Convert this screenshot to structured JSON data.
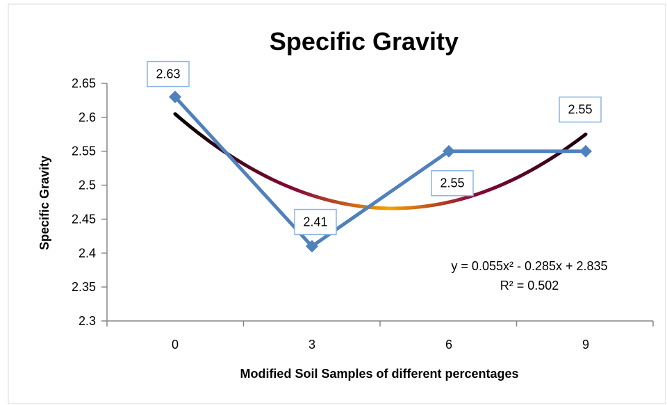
{
  "chart_data": {
    "type": "line",
    "title": "Specific Gravity",
    "xlabel": "Modified  Soil Samples of different percentages",
    "ylabel": "Specific Gravity",
    "x_ticks": [
      "0",
      "3",
      "6",
      "9"
    ],
    "y_ticks": [
      "2.3",
      "2.35",
      "2.4",
      "2.45",
      "2.5",
      "2.55",
      "2.6",
      "2.65"
    ],
    "ylim": [
      2.3,
      2.65
    ],
    "grid": false,
    "legend": "none",
    "series": [
      {
        "x": [
          0,
          3,
          6,
          9
        ],
        "values": [
          2.63,
          2.41,
          2.55,
          2.55
        ],
        "color": "#4F81BD",
        "marker": "diamond"
      }
    ],
    "data_labels": [
      "2.63",
      "2.41",
      "2.55",
      "2.55"
    ],
    "trendline": {
      "type": "polynomial",
      "order": 2,
      "equation": "y = 0.055x² - 0.285x + 2.835",
      "r_squared": "R² = 0.502",
      "coefficients": [
        0.055,
        -0.285,
        2.835
      ],
      "colors": [
        "#000000",
        "#8B0A3A",
        "#F5A300"
      ]
    }
  }
}
